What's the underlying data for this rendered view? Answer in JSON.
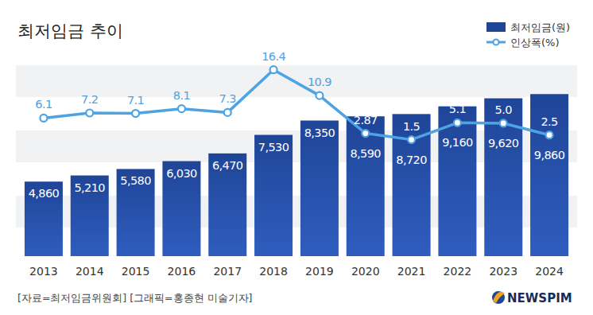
{
  "chart_data": {
    "type": "bar",
    "title": "최저임금 추이",
    "categories": [
      "2013",
      "2014",
      "2015",
      "2016",
      "2017",
      "2018",
      "2019",
      "2020",
      "2021",
      "2022",
      "2023",
      "2024"
    ],
    "series": [
      {
        "name": "최저임금(원)",
        "type": "bar",
        "color": "#1f4597",
        "values": [
          4860,
          5210,
          5580,
          6030,
          6470,
          7530,
          8350,
          8590,
          8720,
          9160,
          9620,
          9860
        ],
        "value_labels": [
          "4,860",
          "5,210",
          "5,580",
          "6,030",
          "6,470",
          "7,530",
          "8,350",
          "8,590",
          "8,720",
          "9,160",
          "9,620",
          "9,860"
        ]
      },
      {
        "name": "인상폭(%)",
        "type": "line",
        "axis": "y2",
        "color": "#4ea3e2",
        "marker": "circle",
        "values": [
          6.1,
          7.2,
          7.1,
          8.1,
          7.3,
          16.4,
          10.9,
          2.87,
          1.5,
          5.1,
          5.0,
          2.5
        ],
        "value_labels": [
          "6.1",
          "7.2",
          "7.1",
          "8.1",
          "7.3",
          "16.4",
          "10.9",
          "2.87",
          "1.5",
          "5.1",
          "5.0",
          "2.5"
        ]
      }
    ],
    "ylim": [
      600,
      11600
    ],
    "y2lim": [
      -23.3,
      17.7
    ],
    "data_labels": true,
    "legend": "top-right",
    "tick_labels": "x",
    "grid": false,
    "annotations": [
      "[자료=최저임금위원회] [그래픽=홍종현 미술기자]",
      "NEWSPIM"
    ]
  }
}
